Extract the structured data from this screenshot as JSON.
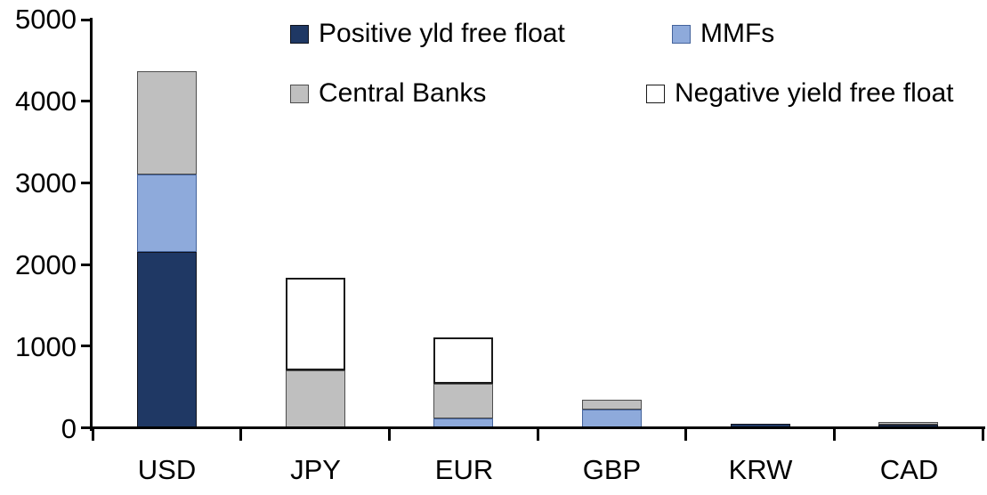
{
  "chart_data": {
    "type": "bar",
    "stacked": true,
    "title": "",
    "xlabel": "",
    "ylabel": "",
    "categories": [
      "USD",
      "JPY",
      "EUR",
      "GBP",
      "KRW",
      "CAD"
    ],
    "series": [
      {
        "name": "Positive yld free float",
        "color": "#1F3864",
        "border": "#10131d",
        "values": [
          2150,
          0,
          0,
          0,
          50,
          40
        ]
      },
      {
        "name": "MMFs",
        "color": "#8EAADB",
        "border": "#44639c",
        "values": [
          950,
          0,
          110,
          220,
          0,
          0
        ]
      },
      {
        "name": "Central Banks",
        "color": "#BFBFBF",
        "border": "#4d4d4d",
        "values": [
          1270,
          700,
          430,
          120,
          0,
          30
        ]
      },
      {
        "name": "Negative yield free float",
        "color": "#FFFFFF",
        "border": "#1a1a1a",
        "values": [
          0,
          1140,
          570,
          0,
          0,
          0
        ]
      }
    ],
    "totals": [
      4370,
      1840,
      1110,
      340,
      50,
      70
    ],
    "ylim": [
      0,
      5000
    ],
    "ytick_interval": 1000,
    "yticks": [
      "0",
      "1000",
      "2000",
      "3000",
      "4000",
      "5000"
    ],
    "grid": false,
    "legend_position": "top",
    "axis_color": "#000000"
  }
}
